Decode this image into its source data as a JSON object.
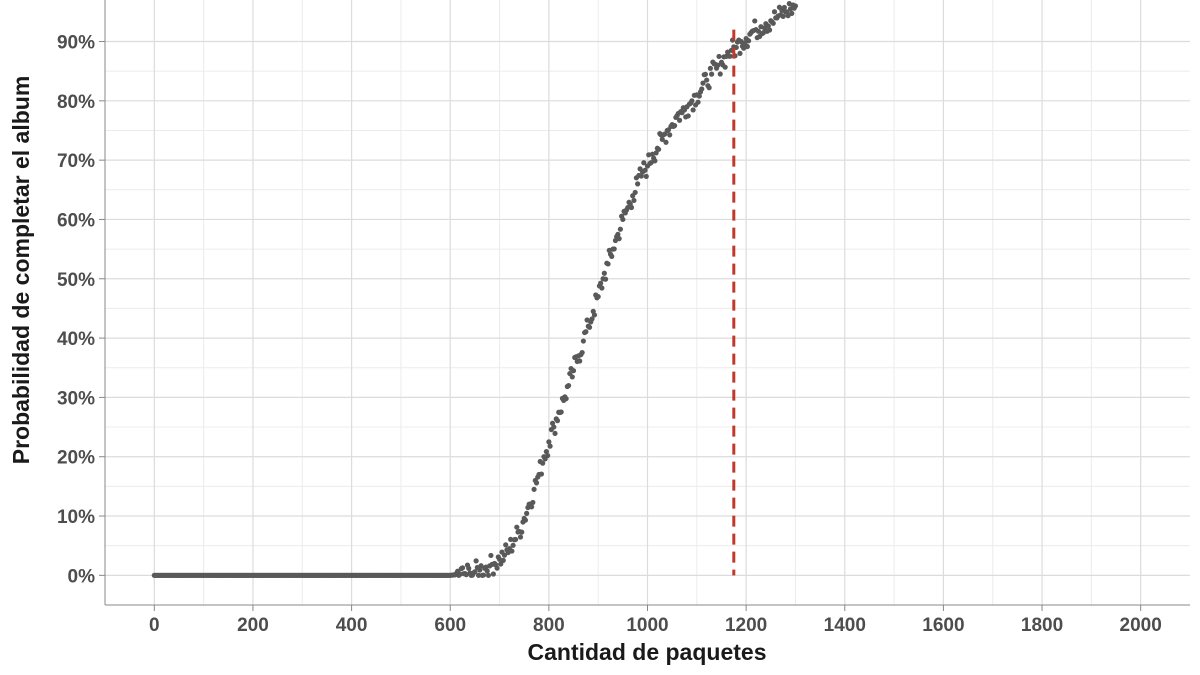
{
  "chart_data": {
    "type": "scatter",
    "title": "",
    "xlabel": "Cantidad de paquetes",
    "ylabel": "Probabilidad de completar el album",
    "xlim": [
      -100,
      2100
    ],
    "ylim": [
      -0.05,
      0.97
    ],
    "x_ticks": [
      0,
      200,
      400,
      600,
      800,
      1000,
      1200,
      1400,
      1600,
      1800,
      2000
    ],
    "x_tick_labels": [
      "0",
      "200",
      "400",
      "600",
      "800",
      "1000",
      "1200",
      "1400",
      "1600",
      "1800",
      "2000"
    ],
    "y_ticks": [
      0,
      0.1,
      0.2,
      0.3,
      0.4,
      0.5,
      0.6,
      0.7,
      0.8,
      0.9
    ],
    "y_tick_labels": [
      "0%",
      "10%",
      "20%",
      "30%",
      "40%",
      "50%",
      "60%",
      "70%",
      "80%",
      "90%"
    ],
    "grid": true,
    "reference_line": {
      "x": 1175,
      "style": "dashed",
      "color": "#c0392b"
    },
    "point_color": "#595959",
    "series": [
      {
        "x": [
          0,
          10,
          20,
          30,
          40,
          50,
          60,
          70,
          80,
          90,
          100,
          110,
          120,
          130,
          140,
          150,
          160,
          170,
          180,
          190,
          200,
          210,
          220,
          230,
          240,
          250,
          260,
          270,
          280,
          290,
          300,
          310,
          320,
          330,
          340,
          350,
          360,
          370,
          380,
          390,
          400,
          410,
          420,
          430,
          440,
          450,
          460,
          470,
          480,
          490,
          500,
          510,
          520,
          530,
          540,
          550,
          560,
          570,
          580,
          590,
          600,
          610,
          620,
          630,
          640,
          650,
          660,
          670,
          680,
          690,
          700,
          710,
          720,
          730,
          740,
          750,
          760,
          770,
          780,
          790,
          800,
          810,
          820,
          830,
          840,
          850,
          860,
          870,
          880,
          890,
          900,
          910,
          920,
          930,
          940,
          950,
          960,
          970,
          980,
          990,
          1000,
          1010,
          1020,
          1030,
          1040,
          1050,
          1060,
          1070,
          1080,
          1090,
          1100,
          1110,
          1120,
          1130,
          1140,
          1150,
          1160,
          1170,
          1180,
          1190,
          1200,
          1210,
          1220,
          1230,
          1240,
          1250,
          1260,
          1270,
          1280,
          1290,
          1300
        ],
        "y": [
          0,
          0,
          0,
          0,
          0,
          0,
          0,
          0,
          0,
          0,
          0,
          0,
          0,
          0,
          0,
          0,
          0,
          0,
          0,
          0,
          0,
          0,
          0,
          0,
          0,
          0,
          0,
          0,
          0,
          0,
          0,
          0,
          0,
          0,
          0,
          0,
          0,
          0,
          0,
          0,
          0,
          0,
          0,
          0,
          0,
          0,
          0,
          0,
          0,
          0,
          0,
          0,
          0,
          0,
          0,
          0,
          0,
          0,
          0,
          0,
          0,
          0.001,
          0.002,
          0.003,
          0.004,
          0.006,
          0.009,
          0.012,
          0.016,
          0.02,
          0.027,
          0.034,
          0.045,
          0.06,
          0.074,
          0.096,
          0.12,
          0.145,
          0.17,
          0.2,
          0.225,
          0.25,
          0.275,
          0.295,
          0.32,
          0.345,
          0.37,
          0.395,
          0.42,
          0.445,
          0.47,
          0.5,
          0.525,
          0.55,
          0.575,
          0.6,
          0.62,
          0.64,
          0.66,
          0.68,
          0.69,
          0.71,
          0.72,
          0.735,
          0.75,
          0.76,
          0.775,
          0.78,
          0.79,
          0.8,
          0.81,
          0.82,
          0.835,
          0.845,
          0.855,
          0.865,
          0.875,
          0.885,
          0.89,
          0.9,
          0.905,
          0.915,
          0.92,
          0.925,
          0.93,
          0.935,
          0.94,
          0.945,
          0.95,
          0.955,
          0.96
        ]
      }
    ]
  }
}
